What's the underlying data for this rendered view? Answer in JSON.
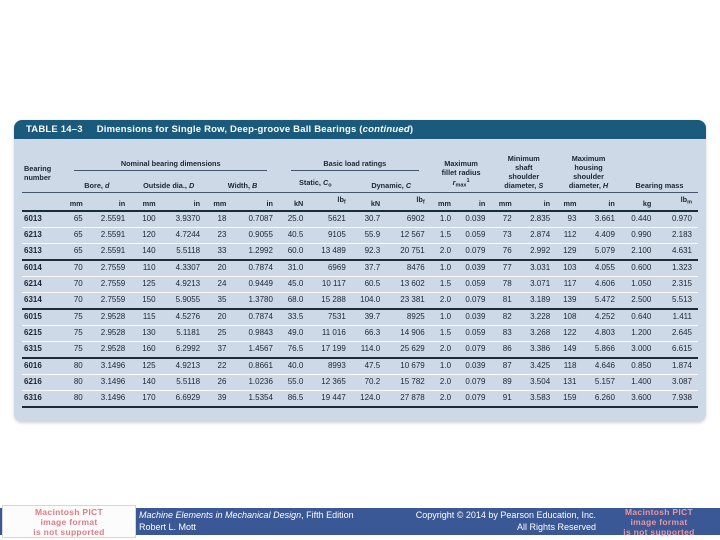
{
  "colors": {
    "table_header_bg": "#1a5a7d",
    "table_body_bg": "#cdd9e7",
    "footer_bar_bg": "#3a5796",
    "pict_text_pink": "#e07a85"
  },
  "table": {
    "title_label": "TABLE 14–3",
    "title_prefix": "Dimensions for Single Row, Deep-groove Ball Bearings (",
    "title_continued": "continued",
    "title_suffix": ")",
    "headers": {
      "bearing": "Bearing number",
      "group_nominal": "Nominal bearing dimensions",
      "group_load": "Basic load ratings",
      "bore": {
        "prefix": "Bore, ",
        "var": "d"
      },
      "outside": {
        "prefix": "Outside dia., ",
        "var": "D"
      },
      "width": {
        "prefix": "Width, ",
        "var": "B"
      },
      "static": {
        "prefix": "Static, ",
        "var": "C",
        "sub": "o"
      },
      "dynamic": {
        "prefix": "Dynamic, ",
        "var": "C"
      },
      "fillet": {
        "lines": [
          "Maximum",
          "fillet radius"
        ],
        "var": "r",
        "sub": "max",
        "sup": "1"
      },
      "shaft": {
        "lines": [
          "Minimum",
          "shaft",
          "shoulder"
        ],
        "last_prefix": "diameter, ",
        "last_var": "S"
      },
      "housing": {
        "lines": [
          "Maximum",
          "housing",
          "shoulder"
        ],
        "last_prefix": "diameter, ",
        "last_var": "H"
      },
      "mass": "Bearing mass"
    },
    "units": {
      "mm": "mm",
      "in": "in",
      "kN": "kN",
      "lb": "lb",
      "f": "f",
      "m": "m",
      "kg": "kg"
    },
    "rows": [
      [
        "6013",
        "65",
        "2.5591",
        "100",
        "3.9370",
        "18",
        "0.7087",
        "25.0",
        "5621",
        "30.7",
        "6902",
        "1.0",
        "0.039",
        "72",
        "2.835",
        "93",
        "3.661",
        "0.440",
        "0.970"
      ],
      [
        "6213",
        "65",
        "2.5591",
        "120",
        "4.7244",
        "23",
        "0.9055",
        "40.5",
        "9105",
        "55.9",
        "12 567",
        "1.5",
        "0.059",
        "73",
        "2.874",
        "112",
        "4.409",
        "0.990",
        "2.183"
      ],
      [
        "6313",
        "65",
        "2.5591",
        "140",
        "5.5118",
        "33",
        "1.2992",
        "60.0",
        "13 489",
        "92.3",
        "20 751",
        "2.0",
        "0.079",
        "76",
        "2.992",
        "129",
        "5.079",
        "2.100",
        "4.631"
      ],
      [
        "6014",
        "70",
        "2.7559",
        "110",
        "4.3307",
        "20",
        "0.7874",
        "31.0",
        "6969",
        "37.7",
        "8476",
        "1.0",
        "0.039",
        "77",
        "3.031",
        "103",
        "4.055",
        "0.600",
        "1.323"
      ],
      [
        "6214",
        "70",
        "2.7559",
        "125",
        "4.9213",
        "24",
        "0.9449",
        "45.0",
        "10 117",
        "60.5",
        "13 602",
        "1.5",
        "0.059",
        "78",
        "3.071",
        "117",
        "4.606",
        "1.050",
        "2.315"
      ],
      [
        "6314",
        "70",
        "2.7559",
        "150",
        "5.9055",
        "35",
        "1.3780",
        "68.0",
        "15 288",
        "104.0",
        "23 381",
        "2.0",
        "0.079",
        "81",
        "3.189",
        "139",
        "5.472",
        "2.500",
        "5.513"
      ],
      [
        "6015",
        "75",
        "2.9528",
        "115",
        "4.5276",
        "20",
        "0.7874",
        "33.5",
        "7531",
        "39.7",
        "8925",
        "1.0",
        "0.039",
        "82",
        "3.228",
        "108",
        "4.252",
        "0.640",
        "1.411"
      ],
      [
        "6215",
        "75",
        "2.9528",
        "130",
        "5.1181",
        "25",
        "0.9843",
        "49.0",
        "11 016",
        "66.3",
        "14 906",
        "1.5",
        "0.059",
        "83",
        "3.268",
        "122",
        "4.803",
        "1.200",
        "2.645"
      ],
      [
        "6315",
        "75",
        "2.9528",
        "160",
        "6.2992",
        "37",
        "1.4567",
        "76.5",
        "17 199",
        "114.0",
        "25 629",
        "2.0",
        "0.079",
        "86",
        "3.386",
        "149",
        "5.866",
        "3.000",
        "6.615"
      ],
      [
        "6016",
        "80",
        "3.1496",
        "125",
        "4.9213",
        "22",
        "0.8661",
        "40.0",
        "8993",
        "47.5",
        "10 679",
        "1.0",
        "0.039",
        "87",
        "3.425",
        "118",
        "4.646",
        "0.850",
        "1.874"
      ],
      [
        "6216",
        "80",
        "3.1496",
        "140",
        "5.5118",
        "26",
        "1.0236",
        "55.0",
        "12 365",
        "70.2",
        "15 782",
        "2.0",
        "0.079",
        "89",
        "3.504",
        "131",
        "5.157",
        "1.400",
        "3.087"
      ],
      [
        "6316",
        "80",
        "3.1496",
        "170",
        "6.6929",
        "39",
        "1.5354",
        "86.5",
        "19 447",
        "124.0",
        "27 878",
        "2.0",
        "0.079",
        "91",
        "3.583",
        "159",
        "6.260",
        "3.600",
        "7.938"
      ]
    ]
  },
  "footer": {
    "book_title": "Machine Elements in Mechanical Design",
    "edition": ", Fifth Edition",
    "author": "Robert L. Mott",
    "copyright_line1": "Copyright © 2014 by Pearson Education, Inc.",
    "copyright_line2": "All Rights Reserved"
  },
  "pict": {
    "line1": "Macintosh PICT",
    "line2": "image format",
    "line3": "is not supported"
  }
}
